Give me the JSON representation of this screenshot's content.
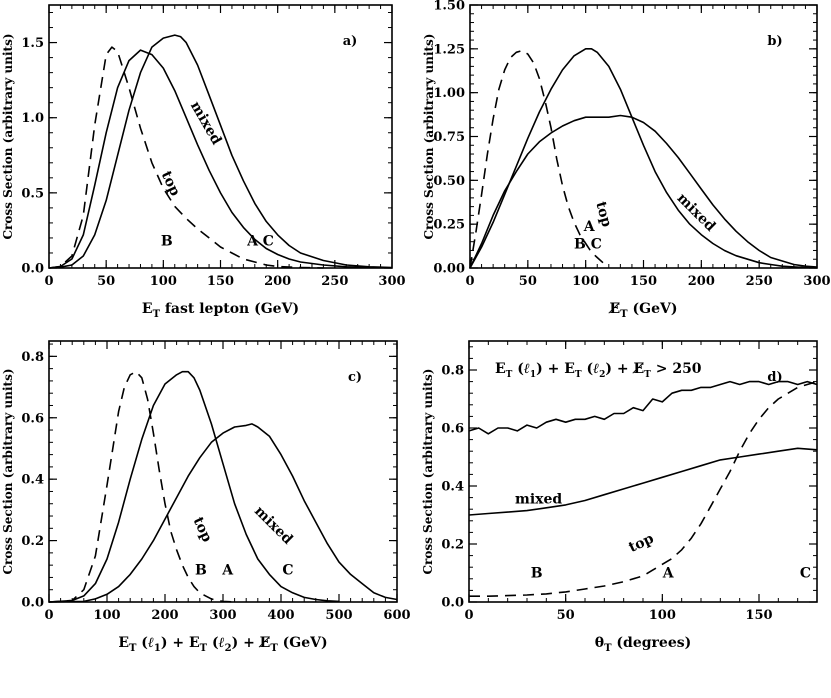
{
  "chart_data": [
    {
      "type": "line",
      "panel_label": "a)",
      "xlabel": "E_T fast lepton  (GeV)",
      "xlabel_main": "E",
      "xlabel_sub": "T",
      "xlabel_rest": " fast lepton  (GeV)",
      "ylabel": "Cross Section (arbitrary units)",
      "xlim": [
        0,
        300
      ],
      "ylim": [
        0,
        1.75
      ],
      "xticks": [
        0,
        50,
        100,
        150,
        200,
        250,
        300
      ],
      "yticks": [
        0.0,
        0.5,
        1.0,
        1.5
      ],
      "ytick_labels": [
        "0.0",
        "0.5",
        "1.0",
        "1.5"
      ],
      "series": [
        {
          "name": "top",
          "style": "dashed",
          "x": [
            0,
            10,
            20,
            30,
            40,
            50,
            55,
            60,
            70,
            80,
            90,
            100,
            110,
            120,
            130,
            140,
            150,
            160,
            170,
            180,
            190,
            200,
            220,
            240
          ],
          "y": [
            0,
            0.01,
            0.08,
            0.35,
            0.95,
            1.42,
            1.47,
            1.44,
            1.2,
            0.93,
            0.7,
            0.53,
            0.41,
            0.33,
            0.26,
            0.2,
            0.14,
            0.1,
            0.06,
            0.04,
            0.02,
            0.01,
            0.003,
            0
          ]
        },
        {
          "name": "B",
          "style": "solid",
          "x": [
            0,
            10,
            20,
            30,
            40,
            50,
            60,
            70,
            80,
            90,
            100,
            110,
            120,
            130,
            140,
            150,
            160,
            170,
            180,
            190,
            200,
            210,
            220,
            240,
            260,
            280,
            300
          ],
          "y": [
            0,
            0.01,
            0.06,
            0.22,
            0.55,
            0.9,
            1.2,
            1.38,
            1.45,
            1.42,
            1.33,
            1.18,
            1.0,
            0.82,
            0.65,
            0.5,
            0.37,
            0.27,
            0.19,
            0.13,
            0.09,
            0.06,
            0.04,
            0.02,
            0.008,
            0.003,
            0.001
          ]
        },
        {
          "name": "mixed",
          "style": "solid",
          "x": [
            0,
            10,
            20,
            30,
            40,
            50,
            60,
            70,
            80,
            90,
            100,
            110,
            115,
            120,
            130,
            140,
            150,
            160,
            170,
            180,
            190,
            200,
            210,
            220,
            240,
            260,
            280,
            300
          ],
          "y": [
            0,
            0.005,
            0.02,
            0.08,
            0.22,
            0.45,
            0.75,
            1.05,
            1.3,
            1.47,
            1.53,
            1.55,
            1.54,
            1.5,
            1.35,
            1.15,
            0.95,
            0.75,
            0.58,
            0.43,
            0.31,
            0.22,
            0.15,
            0.1,
            0.05,
            0.02,
            0.008,
            0.003
          ]
        }
      ],
      "annotations": [
        {
          "text": "mixed",
          "x": 134,
          "y": 0.95,
          "rotate": 60
        },
        {
          "text": "top",
          "x": 103,
          "y": 0.55,
          "rotate": 65
        },
        {
          "text": "B",
          "x": 103,
          "y": 0.15,
          "rotate": 0
        },
        {
          "text": "A C",
          "x": 185,
          "y": 0.15,
          "rotate": 0
        }
      ]
    },
    {
      "type": "line",
      "panel_label": "b)",
      "xlabel": "E_T (GeV)",
      "xlabel_main": "E",
      "xlabel_sub": "T",
      "xlabel_rest": "   (GeV)",
      "xlabel_slashed": true,
      "ylabel": "Cross Section (arbitrary units)",
      "xlim": [
        0,
        300
      ],
      "ylim": [
        0,
        1.5
      ],
      "xticks": [
        0,
        50,
        100,
        150,
        200,
        250,
        300
      ],
      "yticks": [
        0.0,
        0.25,
        0.5,
        0.75,
        1.0,
        1.25,
        1.5
      ],
      "ytick_labels": [
        "0.00",
        "0.25",
        "0.50",
        "0.75",
        "1.00",
        "1.25",
        "1.50"
      ],
      "series": [
        {
          "name": "top",
          "style": "dashed",
          "x": [
            0,
            5,
            10,
            15,
            20,
            25,
            30,
            35,
            40,
            45,
            50,
            55,
            60,
            65,
            70,
            75,
            80,
            85,
            90,
            95,
            100,
            105,
            110,
            115,
            120
          ],
          "y": [
            0,
            0.2,
            0.42,
            0.65,
            0.85,
            1.02,
            1.13,
            1.2,
            1.23,
            1.24,
            1.22,
            1.17,
            1.08,
            0.95,
            0.8,
            0.62,
            0.47,
            0.35,
            0.26,
            0.19,
            0.14,
            0.09,
            0.06,
            0.03,
            0.01
          ]
        },
        {
          "name": "B",
          "style": "solid",
          "x": [
            0,
            10,
            20,
            30,
            40,
            50,
            60,
            70,
            80,
            90,
            100,
            105,
            110,
            120,
            130,
            140,
            150,
            160,
            170,
            180,
            190,
            200,
            210,
            220,
            230,
            240,
            250,
            260,
            270,
            280,
            290,
            300
          ],
          "y": [
            0,
            0.12,
            0.26,
            0.42,
            0.58,
            0.74,
            0.89,
            1.02,
            1.13,
            1.21,
            1.25,
            1.25,
            1.23,
            1.15,
            1.02,
            0.86,
            0.7,
            0.55,
            0.43,
            0.33,
            0.25,
            0.19,
            0.14,
            0.1,
            0.07,
            0.05,
            0.03,
            0.02,
            0.01,
            0.006,
            0.003,
            0.001
          ]
        },
        {
          "name": "mixed",
          "style": "solid",
          "x": [
            0,
            10,
            20,
            30,
            40,
            50,
            60,
            70,
            80,
            90,
            100,
            110,
            120,
            130,
            140,
            150,
            160,
            170,
            180,
            190,
            200,
            210,
            220,
            230,
            240,
            250,
            260,
            270,
            280,
            290,
            300
          ],
          "y": [
            0,
            0.14,
            0.3,
            0.44,
            0.55,
            0.65,
            0.72,
            0.77,
            0.81,
            0.84,
            0.86,
            0.86,
            0.86,
            0.87,
            0.86,
            0.83,
            0.78,
            0.71,
            0.63,
            0.54,
            0.45,
            0.36,
            0.28,
            0.21,
            0.15,
            0.1,
            0.06,
            0.04,
            0.02,
            0.01,
            0.005
          ]
        }
      ],
      "annotations": [
        {
          "text": "top",
          "x": 112,
          "y": 0.3,
          "rotate": 75
        },
        {
          "text": "mixed",
          "x": 193,
          "y": 0.3,
          "rotate": 45
        },
        {
          "text": "A",
          "x": 103,
          "y": 0.21,
          "rotate": 0
        },
        {
          "text": "B C",
          "x": 102,
          "y": 0.11,
          "rotate": 0
        }
      ]
    },
    {
      "type": "line",
      "panel_label": "c)",
      "xlabel": "E_T (l_1) + E_T (l_2) + E_T (GeV)",
      "xlabel_combined": true,
      "ylabel": "Cross Section (arbitrary units)",
      "xlim": [
        0,
        600
      ],
      "ylim": [
        0,
        0.85
      ],
      "xticks": [
        0,
        100,
        200,
        300,
        400,
        500,
        600
      ],
      "yticks": [
        0.0,
        0.2,
        0.4,
        0.6,
        0.8
      ],
      "ytick_labels": [
        "0.0",
        "0.2",
        "0.4",
        "0.6",
        "0.8"
      ],
      "series": [
        {
          "name": "top",
          "style": "dashed",
          "x": [
            0,
            40,
            60,
            80,
            100,
            120,
            130,
            140,
            150,
            160,
            170,
            180,
            190,
            200,
            210,
            220,
            230,
            240,
            250,
            260,
            270,
            280,
            290,
            300,
            320
          ],
          "y": [
            0,
            0.005,
            0.04,
            0.15,
            0.38,
            0.62,
            0.7,
            0.74,
            0.75,
            0.73,
            0.66,
            0.55,
            0.43,
            0.32,
            0.23,
            0.17,
            0.12,
            0.08,
            0.05,
            0.03,
            0.02,
            0.01,
            0.005,
            0.002,
            0
          ]
        },
        {
          "name": "B",
          "style": "solid",
          "x": [
            0,
            40,
            60,
            80,
            100,
            120,
            140,
            160,
            180,
            200,
            220,
            230,
            240,
            250,
            260,
            280,
            300,
            320,
            340,
            360,
            380,
            400,
            420,
            440,
            460,
            480,
            500
          ],
          "y": [
            0,
            0.005,
            0.02,
            0.06,
            0.14,
            0.26,
            0.4,
            0.53,
            0.64,
            0.71,
            0.74,
            0.75,
            0.75,
            0.73,
            0.69,
            0.58,
            0.45,
            0.32,
            0.22,
            0.14,
            0.09,
            0.05,
            0.03,
            0.015,
            0.008,
            0.004,
            0.002
          ]
        },
        {
          "name": "mixed",
          "style": "solid",
          "x": [
            0,
            60,
            80,
            100,
            120,
            140,
            160,
            180,
            200,
            220,
            240,
            260,
            280,
            300,
            320,
            340,
            350,
            360,
            380,
            400,
            420,
            440,
            460,
            480,
            500,
            520,
            540,
            560,
            580,
            600
          ],
          "y": [
            0,
            0.002,
            0.01,
            0.025,
            0.05,
            0.09,
            0.14,
            0.2,
            0.27,
            0.34,
            0.41,
            0.47,
            0.52,
            0.55,
            0.57,
            0.575,
            0.58,
            0.57,
            0.54,
            0.48,
            0.41,
            0.33,
            0.26,
            0.19,
            0.13,
            0.09,
            0.06,
            0.03,
            0.015,
            0.008
          ]
        }
      ],
      "annotations": [
        {
          "text": "top",
          "x": 258,
          "y": 0.23,
          "rotate": 65
        },
        {
          "text": "mixed",
          "x": 382,
          "y": 0.24,
          "rotate": 45
        },
        {
          "text": "B",
          "x": 262,
          "y": 0.09,
          "rotate": 0
        },
        {
          "text": "A",
          "x": 308,
          "y": 0.09,
          "rotate": 0
        },
        {
          "text": "C",
          "x": 412,
          "y": 0.09,
          "rotate": 0
        }
      ]
    },
    {
      "type": "line",
      "panel_label": "d)",
      "title": "E_T (l_1) + E_T (l_2) + E_T > 250",
      "title_suffix": " > 250",
      "xlabel": "θ_T  (degrees)",
      "xlabel_main": "θ",
      "xlabel_sub": "T",
      "xlabel_rest": "   (degrees)",
      "ylabel": "Cross Section (arbitrary units)",
      "xlim": [
        0,
        180
      ],
      "ylim": [
        0,
        0.9
      ],
      "xticks": [
        0,
        50,
        100,
        150
      ],
      "yticks": [
        0.0,
        0.2,
        0.4,
        0.6,
        0.8
      ],
      "ytick_labels": [
        "0.0",
        "0.2",
        "0.4",
        "0.6",
        "0.8"
      ],
      "series": [
        {
          "name": "B",
          "style": "solid",
          "x": [
            0,
            5,
            10,
            15,
            20,
            25,
            30,
            35,
            40,
            45,
            50,
            55,
            60,
            65,
            70,
            75,
            80,
            85,
            90,
            95,
            100,
            105,
            110,
            115,
            120,
            125,
            130,
            135,
            140,
            145,
            150,
            155,
            160,
            165,
            170,
            175,
            180
          ],
          "y": [
            0.59,
            0.6,
            0.58,
            0.6,
            0.6,
            0.59,
            0.61,
            0.6,
            0.62,
            0.63,
            0.62,
            0.63,
            0.63,
            0.64,
            0.63,
            0.65,
            0.65,
            0.67,
            0.66,
            0.7,
            0.69,
            0.72,
            0.73,
            0.73,
            0.74,
            0.74,
            0.75,
            0.76,
            0.75,
            0.76,
            0.76,
            0.75,
            0.76,
            0.76,
            0.75,
            0.76,
            0.75
          ]
        },
        {
          "name": "mixed",
          "style": "solid",
          "x": [
            0,
            10,
            20,
            30,
            40,
            50,
            60,
            70,
            80,
            90,
            100,
            110,
            120,
            130,
            140,
            150,
            160,
            170,
            180
          ],
          "y": [
            0.3,
            0.305,
            0.31,
            0.315,
            0.325,
            0.335,
            0.35,
            0.37,
            0.39,
            0.41,
            0.43,
            0.45,
            0.47,
            0.49,
            0.5,
            0.51,
            0.52,
            0.53,
            0.525
          ]
        },
        {
          "name": "top",
          "style": "dashed",
          "x": [
            0,
            10,
            20,
            30,
            40,
            50,
            60,
            70,
            80,
            90,
            95,
            100,
            105,
            110,
            115,
            120,
            125,
            130,
            135,
            140,
            145,
            150,
            155,
            160,
            165,
            170,
            175,
            180
          ],
          "y": [
            0.02,
            0.02,
            0.022,
            0.024,
            0.028,
            0.035,
            0.045,
            0.055,
            0.07,
            0.09,
            0.11,
            0.13,
            0.15,
            0.18,
            0.22,
            0.27,
            0.33,
            0.39,
            0.45,
            0.52,
            0.58,
            0.63,
            0.67,
            0.7,
            0.72,
            0.74,
            0.75,
            0.76
          ]
        }
      ],
      "annotations": [
        {
          "text": "mixed",
          "x": 36,
          "y": 0.34,
          "rotate": 0
        },
        {
          "text": "top",
          "x": 90,
          "y": 0.19,
          "rotate": -25
        },
        {
          "text": "B",
          "x": 35,
          "y": 0.085,
          "rotate": 0
        },
        {
          "text": "A",
          "x": 103,
          "y": 0.085,
          "rotate": 0
        },
        {
          "text": "C",
          "x": 174,
          "y": 0.085,
          "rotate": 0
        }
      ]
    }
  ]
}
